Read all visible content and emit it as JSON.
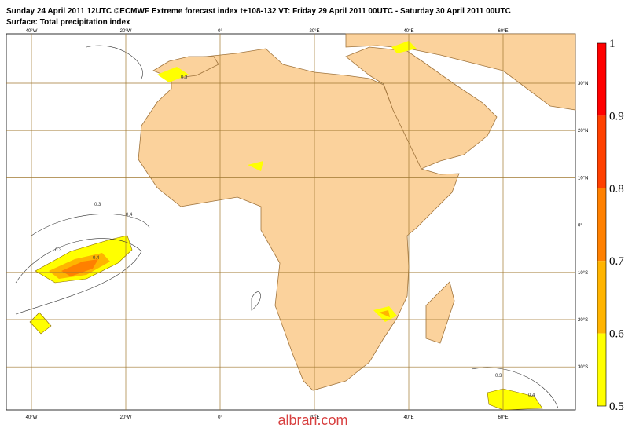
{
  "header": {
    "title": "Sunday 24 April 2011 12UTC ©ECMWF Extreme forecast index t+108-132 VT: Friday 29 April 2011 00UTC - Saturday 30 April 2011 00UTC",
    "subtitle": "Surface: Total precipitation index"
  },
  "map": {
    "lon_labels": [
      "40°W",
      "20°W",
      "0°",
      "20°E",
      "40°E",
      "60°E"
    ],
    "lat_labels": [
      "30°N",
      "20°N",
      "10°N",
      "0°",
      "10°S",
      "20°S",
      "30°S"
    ],
    "contour_labels": [
      "0.3",
      "0.4",
      "0.3",
      "0.4",
      "0.3",
      "0.3",
      "0.4"
    ]
  },
  "legend": {
    "items": [
      {
        "label": "1",
        "color": "#ff0000"
      },
      {
        "label": "0.9",
        "color": "#ff4000"
      },
      {
        "label": "0.8",
        "color": "#ff8000"
      },
      {
        "label": "0.7",
        "color": "#ffb400"
      },
      {
        "label": "0.6",
        "color": "#ffff00"
      },
      {
        "label": "0.5"
      }
    ]
  },
  "watermark": "albrari.com"
}
